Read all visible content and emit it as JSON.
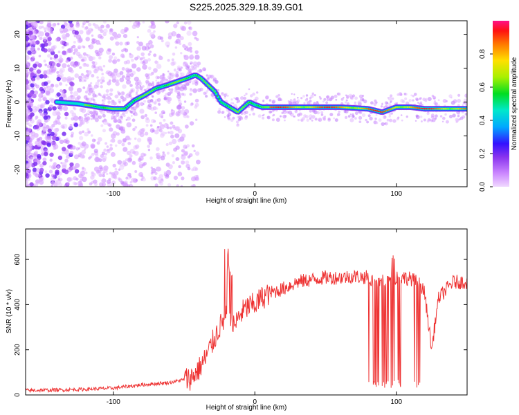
{
  "figure_title": "S225.2025.329.18.39.G01",
  "chart_data": [
    {
      "type": "heatmap",
      "title": "S225.2025.329.18.39.G01",
      "xlabel": "Height of straight line (km)",
      "ylabel": "Frequency (Hz)",
      "xlim": [
        -162,
        150
      ],
      "ylim": [
        -25,
        24
      ],
      "xticks": [
        -100,
        0,
        100
      ],
      "yticks": [
        -20,
        -10,
        0,
        10,
        20
      ],
      "colorbar": {
        "label": "Normalized spectral amplitude",
        "range": [
          0,
          1
        ],
        "ticks": [
          0.0,
          0.2,
          0.4,
          0.6,
          0.8
        ]
      },
      "ridge_frequency_track": {
        "x": [
          -140,
          -125,
          -110,
          -100,
          -92,
          -85,
          -78,
          -70,
          -62,
          -55,
          -48,
          -42,
          -38,
          -33,
          -28,
          -24,
          -20,
          -16,
          -12,
          -8,
          -4,
          0,
          5,
          10,
          20,
          40,
          60,
          80,
          90,
          100,
          110,
          120,
          135,
          150
        ],
        "y": [
          0,
          -0.5,
          -1.5,
          -2,
          -2,
          0.5,
          2,
          4,
          5,
          6,
          7,
          8,
          7,
          5,
          3,
          0,
          -1,
          -2,
          -3,
          -1.5,
          0,
          -0.8,
          -1.5,
          -1.5,
          -1.5,
          -1.5,
          -1.5,
          -2,
          -3,
          -1.5,
          -1.5,
          -2,
          -2,
          -2
        ]
      },
      "noisy_region_x": [
        -162,
        -55
      ]
    },
    {
      "type": "line",
      "xlabel": "Height of straight line (km)",
      "ylabel": "SNR (10 * v/v)",
      "xlim": [
        -162,
        150
      ],
      "ylim": [
        0,
        735
      ],
      "xticks": [
        -100,
        0,
        100
      ],
      "yticks": [
        0,
        200,
        400,
        600
      ],
      "series": [
        {
          "name": "SNR",
          "color": "#ee3333",
          "x": [
            -162,
            -140,
            -120,
            -100,
            -80,
            -60,
            -45,
            -40,
            -35,
            -30,
            -25,
            -20,
            -18,
            -15,
            -10,
            -5,
            0,
            5,
            10,
            20,
            30,
            40,
            50,
            60,
            70,
            80,
            85,
            90,
            95,
            100,
            105,
            110,
            115,
            118,
            120,
            123,
            125,
            128,
            130,
            140,
            150
          ],
          "y": [
            20,
            22,
            25,
            30,
            45,
            55,
            75,
            110,
            160,
            230,
            300,
            350,
            380,
            300,
            360,
            390,
            400,
            430,
            450,
            470,
            500,
            510,
            520,
            520,
            525,
            520,
            500,
            500,
            510,
            520,
            520,
            515,
            500,
            480,
            450,
            300,
            200,
            350,
            430,
            500,
            500
          ]
        }
      ]
    }
  ]
}
